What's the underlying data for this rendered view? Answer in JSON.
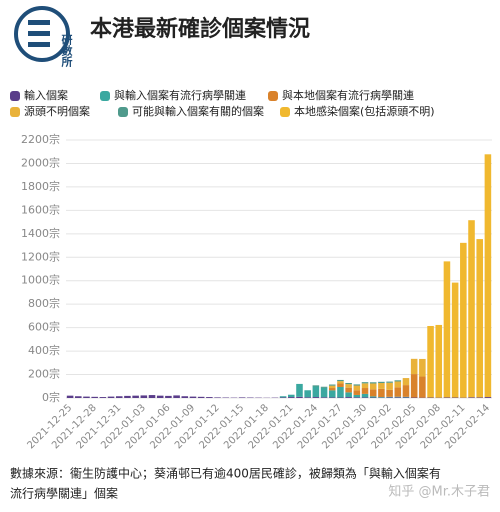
{
  "logo": "研數所",
  "watermark": "知乎 @Mr.木子君",
  "chart_data": {
    "type": "stacked_bar",
    "title": "本港最新確診個案情況",
    "footnote": [
      "數據來源：衞生防護中心；葵涌邨已有逾400居民確診，被歸類為「與輸入個案有",
      "流行病學關連」個案"
    ],
    "categories": [
      "2021-12-25",
      null,
      null,
      "2021-12-28",
      null,
      null,
      "2021-12-31",
      null,
      null,
      "2022-01-03",
      null,
      null,
      "2022-01-06",
      null,
      null,
      "2022-01-09",
      null,
      null,
      "2022-01-12",
      null,
      null,
      "2022-01-15",
      null,
      null,
      "2022-01-18",
      null,
      null,
      "2022-01-21",
      null,
      null,
      "2022-01-24",
      null,
      null,
      "2022-01-27",
      null,
      null,
      "2022-01-30",
      null,
      null,
      "2022-02-02",
      null,
      null,
      "2022-02-05",
      null,
      null,
      "2022-02-08",
      null,
      null,
      "2022-02-11",
      null,
      null,
      "2022-02-14"
    ],
    "series": [
      {
        "name": "輸入個案",
        "color": "#5a3d8a",
        "values": [
          20,
          15,
          12,
          10,
          8,
          12,
          15,
          18,
          20,
          22,
          25,
          20,
          18,
          22,
          15,
          12,
          10,
          8,
          5,
          4,
          3,
          5,
          4,
          3,
          2,
          3,
          5,
          8,
          10,
          6,
          8,
          6,
          5,
          4,
          8,
          6,
          5,
          4,
          3,
          5,
          6,
          5,
          4,
          3,
          4,
          3,
          5,
          4,
          3,
          6,
          5,
          8
        ]
      },
      {
        "name": "與輸入個案有流行病學關連",
        "color": "#3aa8a0",
        "values": [
          0,
          0,
          0,
          0,
          0,
          0,
          0,
          0,
          0,
          0,
          0,
          0,
          0,
          0,
          0,
          0,
          0,
          0,
          0,
          0,
          0,
          0,
          0,
          0,
          0,
          0,
          10,
          20,
          110,
          60,
          90,
          80,
          60,
          90,
          40,
          20,
          30,
          10,
          5,
          5,
          5,
          5,
          0,
          0,
          0,
          0,
          0,
          0,
          0,
          0,
          0,
          0
        ]
      },
      {
        "name": "與本地個案有流行病學關連",
        "color": "#d9822b",
        "values": [
          0,
          0,
          0,
          0,
          0,
          0,
          0,
          0,
          0,
          0,
          0,
          0,
          0,
          0,
          0,
          0,
          0,
          0,
          0,
          0,
          0,
          0,
          0,
          0,
          0,
          0,
          0,
          0,
          0,
          0,
          0,
          0,
          20,
          30,
          40,
          40,
          50,
          60,
          70,
          60,
          80,
          100,
          200,
          180,
          0,
          0,
          0,
          0,
          0,
          0,
          0,
          0
        ]
      },
      {
        "name": "源頭不明個案",
        "color": "#e9b23a",
        "values": [
          0,
          0,
          0,
          0,
          0,
          0,
          0,
          0,
          0,
          0,
          0,
          0,
          0,
          0,
          0,
          0,
          0,
          0,
          0,
          0,
          0,
          0,
          0,
          0,
          0,
          0,
          0,
          0,
          0,
          0,
          0,
          0,
          20,
          20,
          30,
          40,
          40,
          50,
          50,
          60,
          50,
          60,
          130,
          150,
          0,
          0,
          0,
          0,
          0,
          0,
          0,
          0
        ]
      },
      {
        "name": "可能與輸入個案有關的個案",
        "color": "#4f9a8c",
        "values": [
          0,
          0,
          0,
          0,
          0,
          0,
          0,
          0,
          0,
          0,
          0,
          0,
          0,
          0,
          0,
          0,
          0,
          0,
          0,
          0,
          0,
          0,
          0,
          0,
          0,
          0,
          0,
          0,
          0,
          0,
          10,
          10,
          10,
          10,
          10,
          10,
          10,
          10,
          10,
          10,
          10,
          0,
          0,
          0,
          0,
          0,
          0,
          0,
          0,
          0,
          0,
          0
        ]
      },
      {
        "name": "本地感染個案(包括源頭不明)",
        "color": "#f0b82f",
        "values": [
          0,
          0,
          0,
          0,
          0,
          0,
          0,
          0,
          0,
          0,
          0,
          0,
          0,
          0,
          0,
          0,
          0,
          0,
          0,
          0,
          0,
          0,
          0,
          0,
          0,
          0,
          0,
          0,
          0,
          0,
          0,
          0,
          0,
          0,
          0,
          0,
          0,
          0,
          0,
          0,
          0,
          0,
          0,
          0,
          610,
          620,
          1160,
          980,
          1320,
          1510,
          1350,
          2070
        ]
      }
    ],
    "ylim": [
      0,
      2200
    ],
    "yticks": [
      {
        "value": 0,
        "label": "0宗"
      },
      {
        "value": 200,
        "label": "200宗"
      },
      {
        "value": 400,
        "label": "400宗"
      },
      {
        "value": 600,
        "label": "600宗"
      },
      {
        "value": 800,
        "label": "800宗"
      },
      {
        "value": 1000,
        "label": "1000宗"
      },
      {
        "value": 1200,
        "label": "1200宗"
      },
      {
        "value": 1400,
        "label": "1400宗"
      },
      {
        "value": 1600,
        "label": "1600宗"
      },
      {
        "value": 1800,
        "label": "1800宗"
      },
      {
        "value": 2000,
        "label": "2000宗"
      },
      {
        "value": 2200,
        "label": "2200宗"
      }
    ],
    "grid": true
  }
}
